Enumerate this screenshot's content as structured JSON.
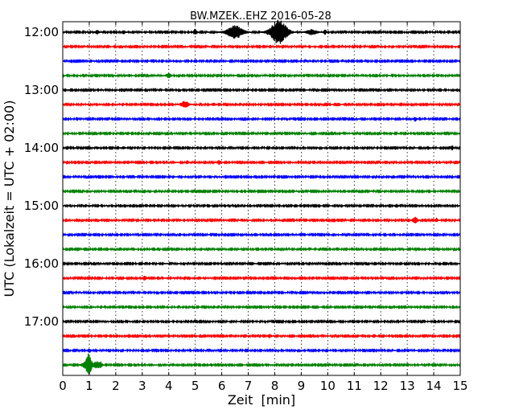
{
  "chart_data": {
    "type": "line",
    "title": "BW.MZEK..EHZ 2016-05-28",
    "xlabel": "Zeit  [min]",
    "ylabel": "UTC (Lokalzeit = UTC + 02:00)",
    "xlim": [
      0,
      15
    ],
    "x_ticks": [
      0,
      1,
      2,
      3,
      4,
      5,
      6,
      7,
      8,
      9,
      10,
      11,
      12,
      13,
      14,
      15
    ],
    "x_tick_labels": [
      "0",
      "1",
      "2",
      "3",
      "4",
      "5",
      "6",
      "7",
      "8",
      "9",
      "10",
      "11",
      "12",
      "13",
      "14",
      "15"
    ],
    "y_tick_labels": [
      "12:00",
      "13:00",
      "14:00",
      "15:00",
      "16:00",
      "17:00"
    ],
    "trace_interval_minutes": 15,
    "grid": true,
    "trace_colors": [
      "#000000",
      "#ff0000",
      "#0000ff",
      "#008000"
    ],
    "traces": [
      {
        "start": "12:00",
        "noise": 0.8,
        "events": [
          {
            "t": 1.3,
            "amp": 2.2,
            "w": 0.08
          },
          {
            "t": 2.3,
            "amp": 2.0,
            "w": 0.06
          },
          {
            "t": 5.0,
            "amp": 4,
            "w": 0.06
          },
          {
            "t": 6.5,
            "amp": 8,
            "w": 0.3
          },
          {
            "t": 8.15,
            "amp": 15,
            "w": 0.32
          },
          {
            "t": 9.4,
            "amp": 3,
            "w": 0.2
          },
          {
            "t": 9.9,
            "amp": 3,
            "w": 0.05
          }
        ]
      },
      {
        "start": "12:15",
        "noise": 0.8,
        "events": []
      },
      {
        "start": "12:30",
        "noise": 0.8,
        "events": [
          {
            "t": 4.3,
            "amp": 1.5,
            "w": 0.05
          }
        ]
      },
      {
        "start": "12:45",
        "noise": 0.8,
        "events": [
          {
            "t": 2.5,
            "amp": 1.5,
            "w": 0.06
          },
          {
            "t": 4.0,
            "amp": 2.5,
            "w": 0.1
          }
        ]
      },
      {
        "start": "13:00",
        "noise": 0.8,
        "events": []
      },
      {
        "start": "13:15",
        "noise": 0.8,
        "events": [
          {
            "t": 4.6,
            "amp": 4,
            "w": 0.15
          },
          {
            "t": 5.7,
            "amp": 1.5,
            "w": 0.08
          }
        ]
      },
      {
        "start": "13:30",
        "noise": 0.8,
        "events": [
          {
            "t": 13.3,
            "amp": 2.5,
            "w": 0.06
          }
        ]
      },
      {
        "start": "13:45",
        "noise": 0.8,
        "events": []
      },
      {
        "start": "14:00",
        "noise": 0.8,
        "events": [
          {
            "t": 1.3,
            "amp": 1.5,
            "w": 0.05
          },
          {
            "t": 2.3,
            "amp": 1.5,
            "w": 0.05
          },
          {
            "t": 13.8,
            "amp": 2.0,
            "w": 0.05
          },
          {
            "t": 14.7,
            "amp": 2.5,
            "w": 0.04
          }
        ]
      },
      {
        "start": "14:15",
        "noise": 0.8,
        "events": [
          {
            "t": 4.7,
            "amp": 2.0,
            "w": 0.05
          },
          {
            "t": 5.9,
            "amp": 2.5,
            "w": 0.08
          },
          {
            "t": 11.4,
            "amp": 1.5,
            "w": 0.05
          }
        ]
      },
      {
        "start": "14:30",
        "noise": 0.8,
        "events": []
      },
      {
        "start": "14:45",
        "noise": 0.8,
        "events": [
          {
            "t": 10.8,
            "amp": 1.5,
            "w": 0.05
          }
        ]
      },
      {
        "start": "15:00",
        "noise": 0.8,
        "events": [
          {
            "t": 12.6,
            "amp": 2.0,
            "w": 0.06
          }
        ]
      },
      {
        "start": "15:15",
        "noise": 0.8,
        "events": [
          {
            "t": 13.3,
            "amp": 3.5,
            "w": 0.1
          },
          {
            "t": 14.1,
            "amp": 2.5,
            "w": 0.05
          }
        ]
      },
      {
        "start": "15:30",
        "noise": 0.8,
        "events": []
      },
      {
        "start": "15:45",
        "noise": 0.8,
        "events": []
      },
      {
        "start": "16:00",
        "noise": 0.8,
        "events": []
      },
      {
        "start": "16:15",
        "noise": 0.8,
        "events": [
          {
            "t": 3.1,
            "amp": 2.5,
            "w": 0.08
          }
        ]
      },
      {
        "start": "16:30",
        "noise": 0.8,
        "events": []
      },
      {
        "start": "16:45",
        "noise": 0.8,
        "events": []
      },
      {
        "start": "17:00",
        "noise": 0.8,
        "events": []
      },
      {
        "start": "17:15",
        "noise": 0.8,
        "events": [
          {
            "t": 2.5,
            "amp": 1.8,
            "w": 0.06
          },
          {
            "t": 7.8,
            "amp": 2.0,
            "w": 0.08
          }
        ]
      },
      {
        "start": "17:30",
        "noise": 0.8,
        "events": [
          {
            "t": 1.0,
            "amp": 2.5,
            "w": 0.06
          }
        ]
      },
      {
        "start": "17:45",
        "noise": 0.8,
        "events": [
          {
            "t": 0.8,
            "amp": 3,
            "w": 0.1
          },
          {
            "t": 0.98,
            "amp": 14,
            "w": 0.1
          },
          {
            "t": 1.3,
            "amp": 4,
            "w": 0.15
          },
          {
            "t": 1.45,
            "amp": 2,
            "w": 0.05
          },
          {
            "t": 5.6,
            "amp": 1.5,
            "w": 0.05
          }
        ]
      }
    ]
  }
}
